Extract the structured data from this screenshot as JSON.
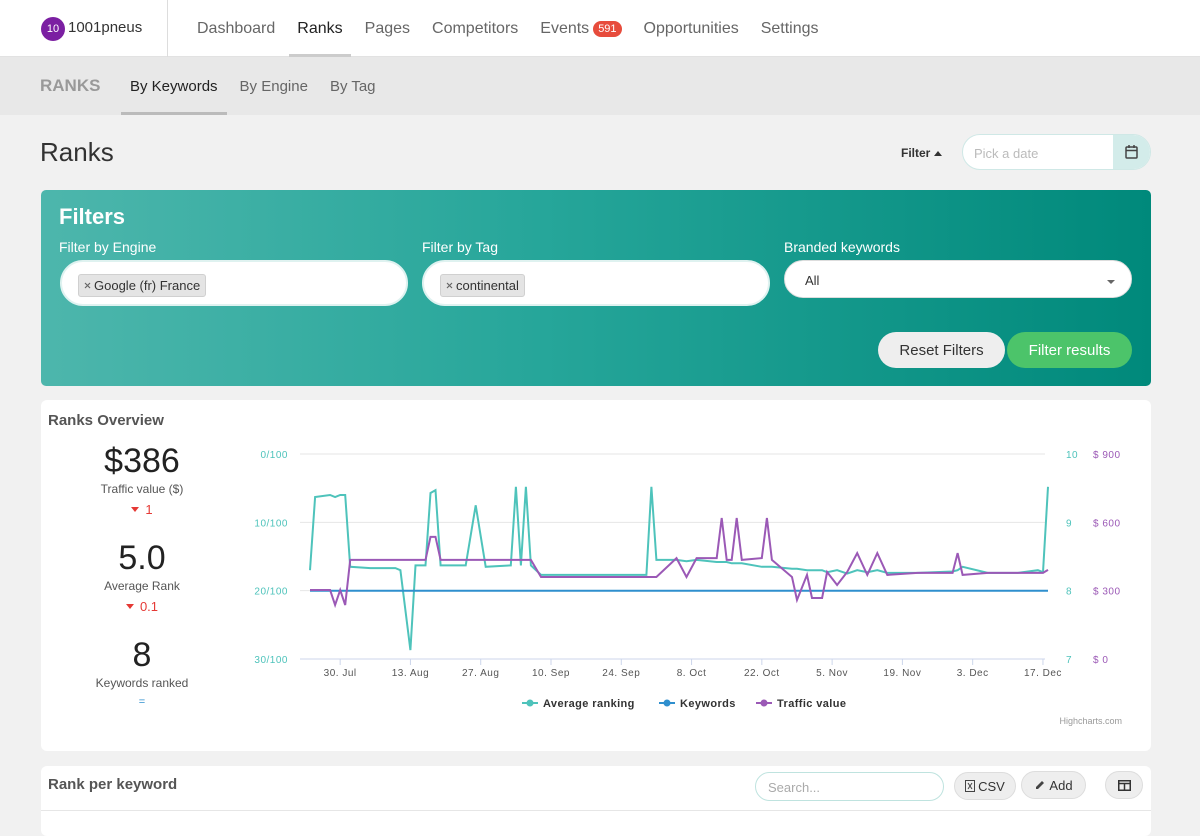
{
  "nav": {
    "badge": "10",
    "brand": "1001pneus",
    "items": [
      "Dashboard",
      "Ranks",
      "Pages",
      "Competitors",
      "Events",
      "Opportunities",
      "Settings"
    ],
    "events_count": "591"
  },
  "subnav": {
    "section": "RANKS",
    "tabs": [
      "By Keywords",
      "By Engine",
      "By Tag"
    ]
  },
  "page": {
    "title": "Ranks",
    "filter_button": "Filter",
    "date_placeholder": "Pick a date"
  },
  "filters": {
    "title": "Filters",
    "engine_label": "Filter by Engine",
    "engine_value": "Google (fr) France",
    "tag_label": "Filter by Tag",
    "tag_value": "continental",
    "branded_label": "Branded keywords",
    "branded_value": "All",
    "reset": "Reset Filters",
    "submit": "Filter results"
  },
  "overview": {
    "title": "Ranks Overview",
    "stats": [
      {
        "value": "$386",
        "label": "Traffic value ($)",
        "change": "1"
      },
      {
        "value": "5.0",
        "label": "Average Rank",
        "change": "0.1"
      },
      {
        "value": "8",
        "label": "Keywords ranked",
        "change": "="
      }
    ]
  },
  "chart_data": {
    "type": "line",
    "x": [
      "24. Jul",
      "25. Jul",
      "28. Jul",
      "29. Jul",
      "30. Jul",
      "31. Jul",
      "1. Aug",
      "5. Aug",
      "10. Aug",
      "11. Aug",
      "13. Aug",
      "14. Aug",
      "16. Aug",
      "17. Aug",
      "18. Aug",
      "19. Aug",
      "24. Aug",
      "26. Aug",
      "28. Aug",
      "2. Sep",
      "3. Sep",
      "4. Sep",
      "5. Sep",
      "6. Sep",
      "8. Sep",
      "20. Sep",
      "29. Sep",
      "30. Sep",
      "1. Oct",
      "5. Oct",
      "7. Oct",
      "9. Oct",
      "13. Oct",
      "14. Oct",
      "15. Oct",
      "16. Oct",
      "17. Oct",
      "18. Oct",
      "22. Oct",
      "23. Oct",
      "24. Oct",
      "28. Oct",
      "29. Oct",
      "31. Oct",
      "1. Nov",
      "3. Nov",
      "4. Nov",
      "6. Nov",
      "8. Nov",
      "10. Nov",
      "12. Nov",
      "14. Nov",
      "16. Nov",
      "22. Nov",
      "29. Nov",
      "30. Nov",
      "1. Dec",
      "6. Dec",
      "12. Dec",
      "16. Dec",
      "17. Dec",
      "18. Dec"
    ],
    "xlim": [
      "22. Jul",
      "19. Dec"
    ],
    "xticks": [
      "30. Jul",
      "13. Aug",
      "27. Aug",
      "10. Sep",
      "24. Sep",
      "8. Oct",
      "22. Oct",
      "5. Nov",
      "19. Nov",
      "3. Dec",
      "17. Dec"
    ],
    "ylim": [
      0,
      30
    ],
    "y_reversed": true,
    "yticks": [
      {
        "value": 0,
        "label": "0/100"
      },
      {
        "value": 10,
        "label": "10/100"
      },
      {
        "value": 20,
        "label": "20/100"
      },
      {
        "value": 30,
        "label": "30/100"
      }
    ],
    "y2lim": [
      7,
      10
    ],
    "y2ticks": [
      7,
      8,
      9,
      10
    ],
    "y3lim": [
      0,
      900
    ],
    "y3ticks": [
      {
        "value": 0,
        "label": "$ 0"
      },
      {
        "value": 300,
        "label": "$ 300"
      },
      {
        "value": 600,
        "label": "$ 600"
      },
      {
        "value": 900,
        "label": "$ 900"
      }
    ],
    "grid": true,
    "legend": "bottom",
    "credit": "Highcharts.com",
    "series": [
      {
        "name": "Average ranking",
        "color": "#4ec3bb",
        "axis": "y",
        "values": [
          17.0,
          6.3,
          6.0,
          6.3,
          6.0,
          6.0,
          16.5,
          16.7,
          16.7,
          17.0,
          28.7,
          16.3,
          16.3,
          5.7,
          5.3,
          16.3,
          16.3,
          7.5,
          16.5,
          16.3,
          4.8,
          16.3,
          4.8,
          16.3,
          17.7,
          17.7,
          17.7,
          4.8,
          15.5,
          15.5,
          15.7,
          15.5,
          15.8,
          15.8,
          15.8,
          16.0,
          16.0,
          16.0,
          16.5,
          16.5,
          16.5,
          16.8,
          16.8,
          17.0,
          17.0,
          17.0,
          17.3,
          17.0,
          17.5,
          17.0,
          17.3,
          17.0,
          17.4,
          17.4,
          17.2,
          17.0,
          16.5,
          17.4,
          17.4,
          17.0,
          17.3,
          4.8
        ]
      },
      {
        "name": "Keywords",
        "color": "#2f8fce",
        "axis": "y2",
        "values": [
          8,
          8,
          8,
          8,
          8,
          8,
          8,
          8,
          8,
          8,
          8,
          8,
          8,
          8,
          8,
          8,
          8,
          8,
          8,
          8,
          8,
          8,
          8,
          8,
          8,
          8,
          8,
          8,
          8,
          8,
          8,
          8,
          8,
          8,
          8,
          8,
          8,
          8,
          8,
          8,
          8,
          8,
          8,
          8,
          8,
          8,
          8,
          8,
          8,
          8,
          8,
          8,
          8,
          8,
          8,
          8,
          8,
          8,
          8,
          8,
          8,
          8
        ]
      },
      {
        "name": "Traffic value",
        "color": "#9b59b6",
        "axis": "y3",
        "values": [
          303,
          303,
          303,
          237,
          303,
          237,
          435,
          435,
          435,
          435,
          435,
          435,
          435,
          536,
          536,
          435,
          435,
          435,
          435,
          435,
          435,
          435,
          435,
          435,
          360,
          360,
          360,
          360,
          360,
          443,
          360,
          443,
          443,
          619,
          435,
          435,
          619,
          435,
          443,
          619,
          435,
          360,
          259,
          369,
          268,
          268,
          382,
          325,
          382,
          465,
          369,
          465,
          369,
          378,
          378,
          465,
          369,
          378,
          378,
          378,
          378,
          391
        ]
      }
    ]
  },
  "table": {
    "title": "Rank per keyword",
    "search_placeholder": "Search...",
    "csv": "CSV",
    "add": "Add"
  }
}
